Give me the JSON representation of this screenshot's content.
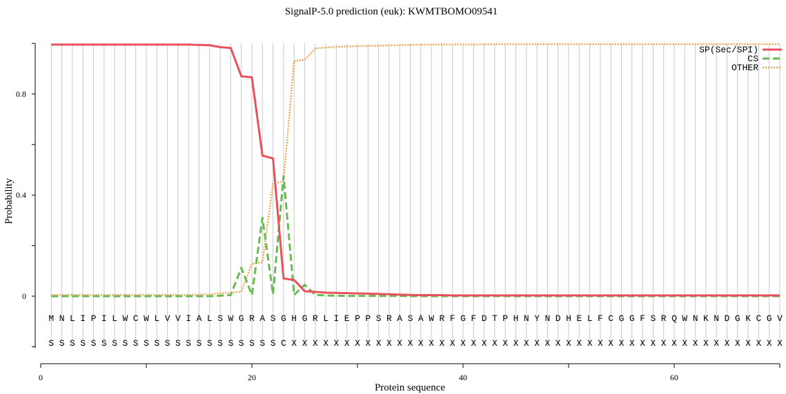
{
  "chart_data": {
    "type": "line",
    "title": "SignalP-5.0 prediction (euk):  KWMTBOMO09541",
    "xlabel": "Protein sequence",
    "ylabel": "Probability",
    "xlim": [
      0,
      70
    ],
    "ylim": [
      -0.2,
      1.0
    ],
    "x_ticks": [
      0,
      20,
      40,
      60
    ],
    "y_ticks": [
      0,
      0.4,
      0.8
    ],
    "grid": "vertical lines at every residue position",
    "legend_position": "top-right",
    "sequence": "MNLIPILWCWLVVIALSWGRASGHGRLIEPPSRASAWRFGFDTPHNYNDHELFCGGFSRQWNKNDGKCGV",
    "labels": "SSSSSSSSSSSSSSSSSSSSSSCXXXXXXXXXXXXXXXXXXXXXXXXXXXXXXXXXXXXXXXXXXXXXXX",
    "x": [
      1,
      2,
      3,
      4,
      5,
      6,
      7,
      8,
      9,
      10,
      11,
      12,
      13,
      14,
      15,
      16,
      17,
      18,
      19,
      20,
      21,
      22,
      23,
      24,
      25,
      26,
      27,
      28,
      29,
      30,
      31,
      32,
      33,
      34,
      35,
      36,
      37,
      38,
      39,
      40,
      41,
      42,
      43,
      44,
      45,
      46,
      47,
      48,
      49,
      50,
      51,
      52,
      53,
      54,
      55,
      56,
      57,
      58,
      59,
      60,
      61,
      62,
      63,
      64,
      65,
      66,
      67,
      68,
      69,
      70
    ],
    "series": [
      {
        "name": "SP(Sec/SPI)",
        "color": "#e8505b",
        "style": "solid",
        "values": [
          0.995,
          0.995,
          0.995,
          0.995,
          0.995,
          0.995,
          0.995,
          0.995,
          0.995,
          0.995,
          0.995,
          0.995,
          0.995,
          0.995,
          0.994,
          0.993,
          0.985,
          0.982,
          0.87,
          0.866,
          0.556,
          0.545,
          0.07,
          0.064,
          0.02,
          0.017,
          0.014,
          0.013,
          0.012,
          0.011,
          0.01,
          0.009,
          0.008,
          0.006,
          0.005,
          0.004,
          0.004,
          0.004,
          0.003,
          0.003,
          0.003,
          0.003,
          0.003,
          0.003,
          0.003,
          0.003,
          0.003,
          0.003,
          0.003,
          0.003,
          0.003,
          0.003,
          0.003,
          0.003,
          0.003,
          0.003,
          0.003,
          0.003,
          0.003,
          0.003,
          0.003,
          0.003,
          0.003,
          0.003,
          0.003,
          0.003,
          0.003,
          0.003,
          0.003,
          0.003
        ]
      },
      {
        "name": "CS",
        "color": "#6aba54",
        "style": "dashed",
        "values": [
          0.0,
          0.0,
          0.0,
          0.0,
          0.0,
          0.0,
          0.0,
          0.0,
          0.0,
          0.0,
          0.0,
          0.0,
          0.0,
          0.0,
          0.0,
          0.0,
          0.002,
          0.005,
          0.112,
          0.005,
          0.31,
          0.008,
          0.475,
          0.005,
          0.045,
          0.005,
          0.003,
          0.002,
          0.001,
          0.001,
          0.001,
          0.001,
          0.001,
          0.001,
          0.0,
          0.0,
          0.0,
          0.0,
          0.0,
          0.0,
          0.0,
          0.0,
          0.0,
          0.0,
          0.0,
          0.0,
          0.0,
          0.0,
          0.0,
          0.0,
          0.0,
          0.0,
          0.0,
          0.0,
          0.0,
          0.0,
          0.0,
          0.0,
          0.0,
          0.0,
          0.0,
          0.0,
          0.0,
          0.0,
          0.0,
          0.0,
          0.0,
          0.0,
          0.0,
          0.0
        ]
      },
      {
        "name": "OTHER",
        "color": "#f5a04a",
        "style": "dotted",
        "values": [
          0.005,
          0.005,
          0.005,
          0.005,
          0.005,
          0.005,
          0.005,
          0.005,
          0.005,
          0.005,
          0.005,
          0.005,
          0.005,
          0.005,
          0.006,
          0.007,
          0.012,
          0.014,
          0.018,
          0.128,
          0.134,
          0.445,
          0.455,
          0.93,
          0.935,
          0.98,
          0.984,
          0.986,
          0.988,
          0.989,
          0.99,
          0.991,
          0.992,
          0.993,
          0.994,
          0.995,
          0.995,
          0.996,
          0.996,
          0.996,
          0.996,
          0.996,
          0.997,
          0.997,
          0.997,
          0.997,
          0.997,
          0.997,
          0.997,
          0.997,
          0.997,
          0.997,
          0.997,
          0.997,
          0.997,
          0.997,
          0.997,
          0.997,
          0.997,
          0.997,
          0.997,
          0.997,
          0.997,
          0.997,
          0.997,
          0.997,
          0.997,
          0.997,
          0.997,
          0.997
        ]
      }
    ]
  }
}
